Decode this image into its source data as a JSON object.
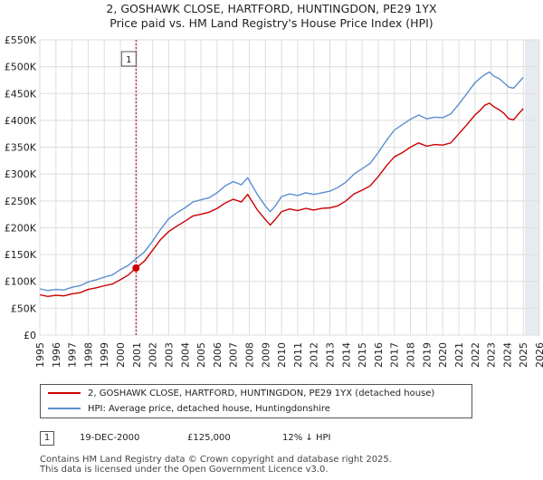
{
  "title_line1": "2, GOSHAWK CLOSE, HARTFORD, HUNTINGDON, PE29 1YX",
  "title_line2": "Price paid vs. HM Land Registry's House Price Index (HPI)",
  "colors": {
    "property": "#cc0000",
    "hpi": "#5b8fd0",
    "future_fill": "#e8eaf2",
    "sale_band": "#f0f2f8"
  },
  "chart_data": {
    "type": "line",
    "ylim": [
      0,
      550000
    ],
    "xlim": [
      1995,
      2026
    ],
    "y_ticks": [
      0,
      50000,
      100000,
      150000,
      200000,
      250000,
      300000,
      350000,
      400000,
      450000,
      500000,
      550000
    ],
    "y_tick_labels": [
      "£0",
      "£50K",
      "£100K",
      "£150K",
      "£200K",
      "£250K",
      "£300K",
      "£350K",
      "£400K",
      "£450K",
      "£500K",
      "£550K"
    ],
    "x_ticks": [
      1995,
      1996,
      1997,
      1998,
      1999,
      2000,
      2001,
      2002,
      2003,
      2004,
      2005,
      2006,
      2007,
      2008,
      2009,
      2010,
      2011,
      2012,
      2013,
      2014,
      2015,
      2016,
      2017,
      2018,
      2019,
      2020,
      2021,
      2022,
      2023,
      2024,
      2025,
      2026
    ],
    "x_tick_labels": [
      "1995",
      "1996",
      "1997",
      "1998",
      "1999",
      "2000",
      "2001",
      "2002",
      "2003",
      "2004",
      "2005",
      "2006",
      "2007",
      "2008",
      "2009",
      "2010",
      "2011",
      "2012",
      "2013",
      "2014",
      "2015",
      "2016",
      "2017",
      "2018",
      "2019",
      "2020",
      "2021",
      "2022",
      "2023",
      "2024",
      "2025",
      "2026"
    ],
    "data_end_year": 2025.1,
    "series": [
      {
        "name": "2, GOSHAWK CLOSE, HARTFORD, HUNTINGDON, PE29 1YX (detached house)",
        "color": "#cc0000",
        "x": [
          1995.0,
          1995.5,
          1996.0,
          1996.5,
          1997.0,
          1997.5,
          1998.0,
          1998.5,
          1999.0,
          1999.5,
          2000.0,
          2000.5,
          2000.97,
          2001.5,
          2002.0,
          2002.5,
          2003.0,
          2003.5,
          2004.0,
          2004.5,
          2005.0,
          2005.5,
          2006.0,
          2006.5,
          2007.0,
          2007.5,
          2007.9,
          2008.5,
          2009.0,
          2009.3,
          2009.6,
          2010.0,
          2010.5,
          2011.0,
          2011.5,
          2012.0,
          2012.5,
          2013.0,
          2013.5,
          2014.0,
          2014.5,
          2015.0,
          2015.5,
          2016.0,
          2016.5,
          2017.0,
          2017.5,
          2018.0,
          2018.5,
          2019.0,
          2019.5,
          2020.0,
          2020.5,
          2021.0,
          2021.5,
          2022.0,
          2022.3,
          2022.6,
          2022.9,
          2023.2,
          2023.5,
          2023.8,
          2024.1,
          2024.4,
          2024.7,
          2025.0
        ],
        "values": [
          75000,
          72000,
          74000,
          73000,
          77000,
          79000,
          85000,
          88000,
          92000,
          95000,
          103000,
          112000,
          125000,
          138000,
          158000,
          178000,
          193000,
          203000,
          212000,
          222000,
          225000,
          229000,
          236000,
          246000,
          253000,
          248000,
          262000,
          233000,
          215000,
          205000,
          215000,
          230000,
          235000,
          232000,
          236000,
          233000,
          236000,
          237000,
          241000,
          250000,
          263000,
          270000,
          278000,
          295000,
          315000,
          332000,
          340000,
          350000,
          358000,
          352000,
          355000,
          354000,
          358000,
          375000,
          392000,
          410000,
          418000,
          428000,
          432000,
          425000,
          420000,
          413000,
          403000,
          401000,
          412000,
          422000
        ]
      },
      {
        "name": "HPI: Average price, detached house, Huntingdonshire",
        "color": "#5b8fd0",
        "x": [
          1995.0,
          1995.5,
          1996.0,
          1996.5,
          1997.0,
          1997.5,
          1998.0,
          1998.5,
          1999.0,
          1999.5,
          2000.0,
          2000.5,
          2000.97,
          2001.5,
          2002.0,
          2002.5,
          2003.0,
          2003.5,
          2004.0,
          2004.5,
          2005.0,
          2005.5,
          2006.0,
          2006.5,
          2007.0,
          2007.5,
          2007.9,
          2008.5,
          2009.0,
          2009.3,
          2009.6,
          2010.0,
          2010.5,
          2011.0,
          2011.5,
          2012.0,
          2012.5,
          2013.0,
          2013.5,
          2014.0,
          2014.5,
          2015.0,
          2015.5,
          2016.0,
          2016.5,
          2017.0,
          2017.5,
          2018.0,
          2018.5,
          2019.0,
          2019.5,
          2020.0,
          2020.5,
          2021.0,
          2021.5,
          2022.0,
          2022.3,
          2022.6,
          2022.9,
          2023.2,
          2023.5,
          2023.8,
          2024.1,
          2024.4,
          2024.7,
          2025.0
        ],
        "values": [
          86000,
          83000,
          85000,
          84000,
          89000,
          92000,
          99000,
          103000,
          108000,
          112000,
          122000,
          130000,
          142000,
          155000,
          175000,
          197000,
          217000,
          228000,
          237000,
          248000,
          252000,
          256000,
          265000,
          278000,
          286000,
          280000,
          293000,
          262000,
          240000,
          230000,
          240000,
          258000,
          263000,
          260000,
          265000,
          262000,
          265000,
          268000,
          275000,
          285000,
          300000,
          310000,
          320000,
          340000,
          362000,
          382000,
          392000,
          402000,
          410000,
          403000,
          406000,
          405000,
          412000,
          430000,
          450000,
          470000,
          478000,
          485000,
          490000,
          482000,
          478000,
          470000,
          462000,
          460000,
          470000,
          480000
        ]
      }
    ],
    "sale_marker": {
      "label": "1",
      "x": 2000.97,
      "value": 125000
    }
  },
  "legend": {
    "property_label": "2, GOSHAWK CLOSE, HARTFORD, HUNTINGDON, PE29 1YX (detached house)",
    "hpi_label": "HPI: Average price, detached house, Huntingdonshire"
  },
  "sale": {
    "badge": "1",
    "date": "19-DEC-2000",
    "price": "£125,000",
    "hpi_diff": "12% ↓ HPI"
  },
  "footer": {
    "line1": "Contains HM Land Registry data © Crown copyright and database right 2025.",
    "line2": "This data is licensed under the Open Government Licence v3.0."
  }
}
